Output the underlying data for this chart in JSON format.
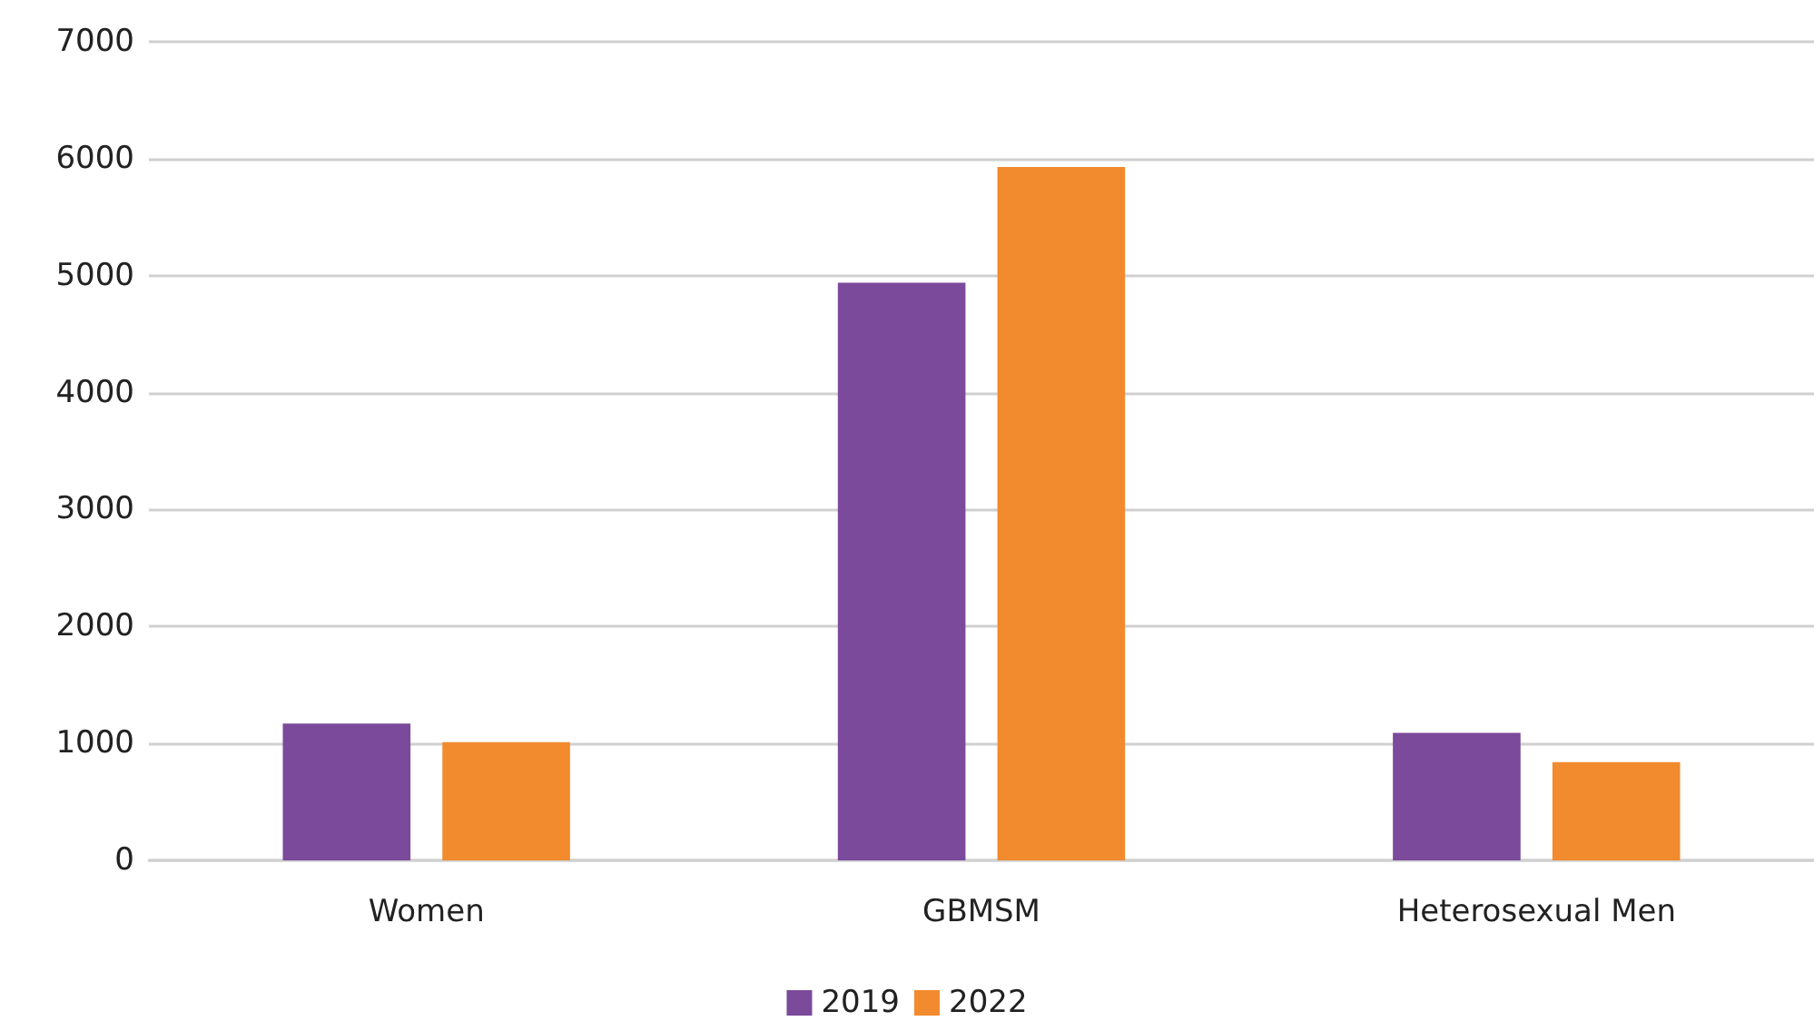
{
  "chart_data": {
    "type": "bar",
    "categories": [
      "Women",
      "GBMSM",
      "Heterosexual Men"
    ],
    "series": [
      {
        "name": "2019",
        "color": "#7b4a9b",
        "values": [
          1170,
          4940,
          1090
        ]
      },
      {
        "name": "2022",
        "color": "#f28a2e",
        "values": [
          1010,
          5930,
          840
        ]
      }
    ],
    "ylim": [
      0,
      7000
    ],
    "yticks": [
      0,
      1000,
      2000,
      3000,
      4000,
      5000,
      6000,
      7000
    ],
    "grid": "y",
    "legend": "bottom"
  }
}
